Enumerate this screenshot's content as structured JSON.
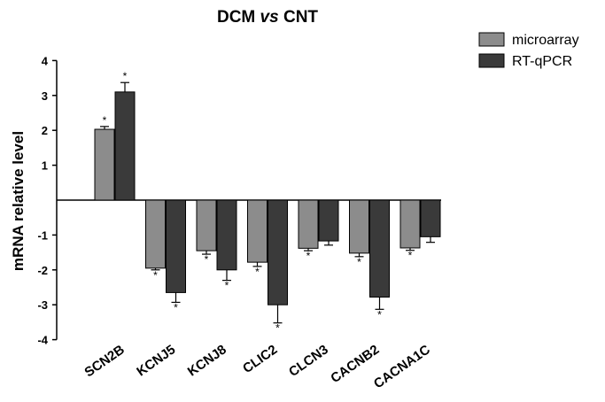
{
  "chart_data": {
    "type": "bar",
    "title_part1": "DCM ",
    "title_italic": "vs",
    "title_part2": " CNT",
    "xlabel": "",
    "ylabel": "mRNA relative level",
    "ylim": [
      -4,
      4
    ],
    "yticks": [
      -4,
      -3,
      -2,
      -1,
      1,
      2,
      3,
      4
    ],
    "categories": [
      "SCN2B",
      "KCNJ5",
      "KCNJ8",
      "CLIC2",
      "CLCN3",
      "CACNB2",
      "CACNA1C"
    ],
    "series": [
      {
        "name": "microarray",
        "color": "#8c8c8c",
        "values": [
          2.03,
          -1.95,
          -1.45,
          -1.78,
          -1.38,
          -1.52,
          -1.37
        ],
        "errors": [
          0.08,
          0.05,
          0.1,
          0.12,
          0.07,
          0.1,
          0.07
        ],
        "significant": [
          "*",
          "*",
          "*",
          "*",
          "*",
          "*",
          "*"
        ]
      },
      {
        "name": "RT-qPCR",
        "color": "#3a3a3a",
        "values": [
          3.1,
          -2.65,
          -2.0,
          -3.0,
          -1.17,
          -2.78,
          -1.05
        ],
        "errors": [
          0.27,
          0.28,
          0.3,
          0.52,
          0.12,
          0.35,
          0.16
        ],
        "significant": [
          "*",
          "*",
          "*",
          "*",
          "",
          "*",
          ""
        ]
      }
    ],
    "legend_position": "top-right"
  }
}
